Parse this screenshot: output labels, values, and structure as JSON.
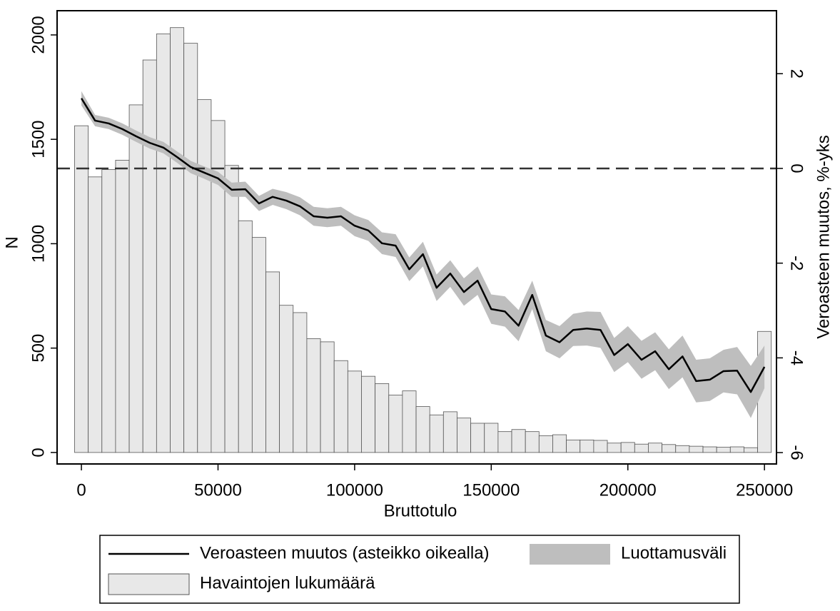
{
  "chart_data": {
    "type": "combo",
    "x_label": "Bruttotulo",
    "y_label": "N",
    "y2_label": "Veroasteen muutos, %-yks",
    "x": [
      0,
      5000,
      10000,
      15000,
      20000,
      25000,
      30000,
      35000,
      40000,
      45000,
      50000,
      55000,
      60000,
      65000,
      70000,
      75000,
      80000,
      85000,
      90000,
      95000,
      100000,
      105000,
      110000,
      115000,
      120000,
      125000,
      130000,
      135000,
      140000,
      145000,
      150000,
      155000,
      160000,
      165000,
      170000,
      175000,
      180000,
      185000,
      190000,
      195000,
      200000,
      205000,
      210000,
      215000,
      220000,
      225000,
      230000,
      235000,
      240000,
      245000,
      250000
    ],
    "series": [
      {
        "name": "Havaintojen lukumäärä",
        "type": "bar",
        "color": "#e8e8e8",
        "values": [
          1565,
          1320,
          1355,
          1400,
          1665,
          1880,
          2005,
          2035,
          1960,
          1690,
          1590,
          1375,
          1110,
          1030,
          865,
          705,
          670,
          545,
          530,
          440,
          390,
          365,
          330,
          275,
          295,
          220,
          180,
          195,
          165,
          140,
          140,
          100,
          110,
          100,
          80,
          85,
          60,
          60,
          58,
          45,
          48,
          40,
          45,
          38,
          33,
          30,
          27,
          25,
          27,
          23,
          580
        ]
      },
      {
        "name": "Luottamusväli",
        "type": "band",
        "axis": "y2",
        "color": "#bebebe",
        "upper": [
          1.63,
          1.13,
          1.07,
          0.95,
          0.8,
          0.66,
          0.56,
          0.36,
          0.16,
          0.04,
          -0.07,
          -0.3,
          -0.28,
          -0.58,
          -0.43,
          -0.5,
          -0.61,
          -0.81,
          -0.84,
          -0.81,
          -0.99,
          -1.09,
          -1.35,
          -1.39,
          -1.88,
          -1.55,
          -2.24,
          -1.94,
          -2.32,
          -2.07,
          -2.66,
          -2.7,
          -2.99,
          -2.37,
          -3.2,
          -3.33,
          -3.07,
          -3.02,
          -3.03,
          -3.58,
          -3.33,
          -3.64,
          -3.46,
          -3.82,
          -3.53,
          -4.04,
          -4.01,
          -3.83,
          -3.77,
          -4.17,
          -3.74
        ],
        "lower": [
          1.33,
          0.89,
          0.83,
          0.71,
          0.56,
          0.42,
          0.32,
          0.12,
          -0.1,
          -0.22,
          -0.35,
          -0.6,
          -0.6,
          -0.9,
          -0.77,
          -0.86,
          -0.99,
          -1.21,
          -1.24,
          -1.21,
          -1.43,
          -1.53,
          -1.81,
          -1.87,
          -2.38,
          -2.07,
          -2.8,
          -2.5,
          -2.9,
          -2.67,
          -3.28,
          -3.34,
          -3.65,
          -2.97,
          -3.86,
          -4.01,
          -3.75,
          -3.74,
          -3.79,
          -4.3,
          -4.09,
          -4.44,
          -4.26,
          -4.66,
          -4.41,
          -4.94,
          -4.91,
          -4.73,
          -4.77,
          -5.27,
          -4.64
        ]
      },
      {
        "name": "Veroasteen muutos (asteikko oikealla)",
        "type": "line",
        "axis": "y2",
        "color": "#000000",
        "values": [
          1.48,
          1.01,
          0.95,
          0.83,
          0.68,
          0.54,
          0.44,
          0.24,
          0.03,
          -0.09,
          -0.21,
          -0.45,
          -0.44,
          -0.74,
          -0.6,
          -0.68,
          -0.8,
          -1.01,
          -1.04,
          -1.01,
          -1.21,
          -1.31,
          -1.58,
          -1.63,
          -2.13,
          -1.81,
          -2.52,
          -2.22,
          -2.61,
          -2.37,
          -2.97,
          -3.02,
          -3.32,
          -2.67,
          -3.53,
          -3.67,
          -3.41,
          -3.38,
          -3.41,
          -3.94,
          -3.71,
          -4.04,
          -3.86,
          -4.24,
          -3.97,
          -4.49,
          -4.46,
          -4.28,
          -4.27,
          -4.72,
          -4.19
        ]
      }
    ],
    "bar_width": 5000,
    "y2_reference_line": 0,
    "xlim": [
      -8900,
      254400
    ],
    "xticks": [
      0,
      50000,
      100000,
      150000,
      200000,
      250000
    ],
    "ylim": [
      -55,
      2116
    ],
    "yticks": [
      0,
      500,
      1000,
      1500,
      2000
    ],
    "y2lim": [
      -6.24,
      3.33
    ],
    "y2ticks": [
      -6,
      -4,
      -2,
      0,
      2
    ],
    "grid": false,
    "legend": "bottom"
  }
}
